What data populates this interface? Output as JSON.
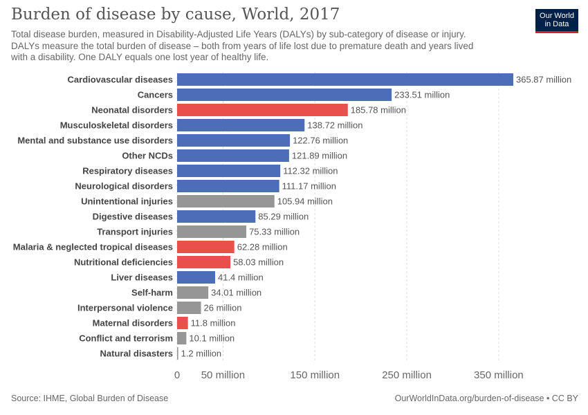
{
  "header": {
    "title": "Burden of disease by cause, World, 2017",
    "subtitle": "Total disease burden, measured in Disability-Adjusted Life Years (DALYs) by sub-category of disease or injury.\n DALYs measure the total burden of disease – both from years of life lost due to premature death and years lived\nwith a disability. One DALY equals one lost year of healthy life.",
    "logo_line1": "Our World",
    "logo_line2": "in Data"
  },
  "footer": {
    "source": "Source: IHME, Global Burden of Disease",
    "credit": "OurWorldInData.org/burden-of-disease • CC BY"
  },
  "colors": {
    "ncd": "#4c6db7",
    "communicable": "#e8504c",
    "injuries": "#969696"
  },
  "chart_data": {
    "type": "bar",
    "orientation": "horizontal",
    "title": "Burden of disease by cause, World, 2017",
    "xlabel": "",
    "ylabel": "",
    "unit": "million",
    "xlim": [
      0,
      370
    ],
    "grid": true,
    "x_ticks": [
      0,
      50,
      150,
      250,
      350
    ],
    "x_tick_labels": [
      "0",
      "50 million",
      "150 million",
      "250 million",
      "350 million"
    ],
    "categories": [
      "Cardiovascular diseases",
      "Cancers",
      "Neonatal disorders",
      "Musculoskeletal disorders",
      "Mental and substance use disorders",
      "Other NCDs",
      "Respiratory diseases",
      "Neurological disorders",
      "Unintentional injuries",
      "Digestive diseases",
      "Transport injuries",
      "Malaria & neglected tropical diseases",
      "Nutritional deficiencies",
      "Liver diseases",
      "Self-harm",
      "Interpersonal violence",
      "Maternal disorders",
      "Conflict and terrorism",
      "Natural disasters"
    ],
    "values": [
      365.87,
      233.51,
      185.78,
      138.72,
      122.76,
      121.89,
      112.32,
      111.17,
      105.94,
      85.29,
      75.33,
      62.28,
      58.03,
      41.4,
      34.01,
      26,
      11.8,
      10.1,
      1.2
    ],
    "value_labels": [
      "365.87 million",
      "233.51 million",
      "185.78 million",
      "138.72 million",
      "122.76 million",
      "121.89 million",
      "112.32 million",
      "111.17 million",
      "105.94 million",
      "85.29 million",
      "75.33 million",
      "62.28 million",
      "58.03 million",
      "41.4 million",
      "34.01 million",
      "26 million",
      "11.8 million",
      "10.1 million",
      "1.2 million"
    ],
    "groups": [
      "ncd",
      "ncd",
      "communicable",
      "ncd",
      "ncd",
      "ncd",
      "ncd",
      "ncd",
      "injuries",
      "ncd",
      "injuries",
      "communicable",
      "communicable",
      "ncd",
      "injuries",
      "injuries",
      "communicable",
      "injuries",
      "injuries"
    ]
  }
}
